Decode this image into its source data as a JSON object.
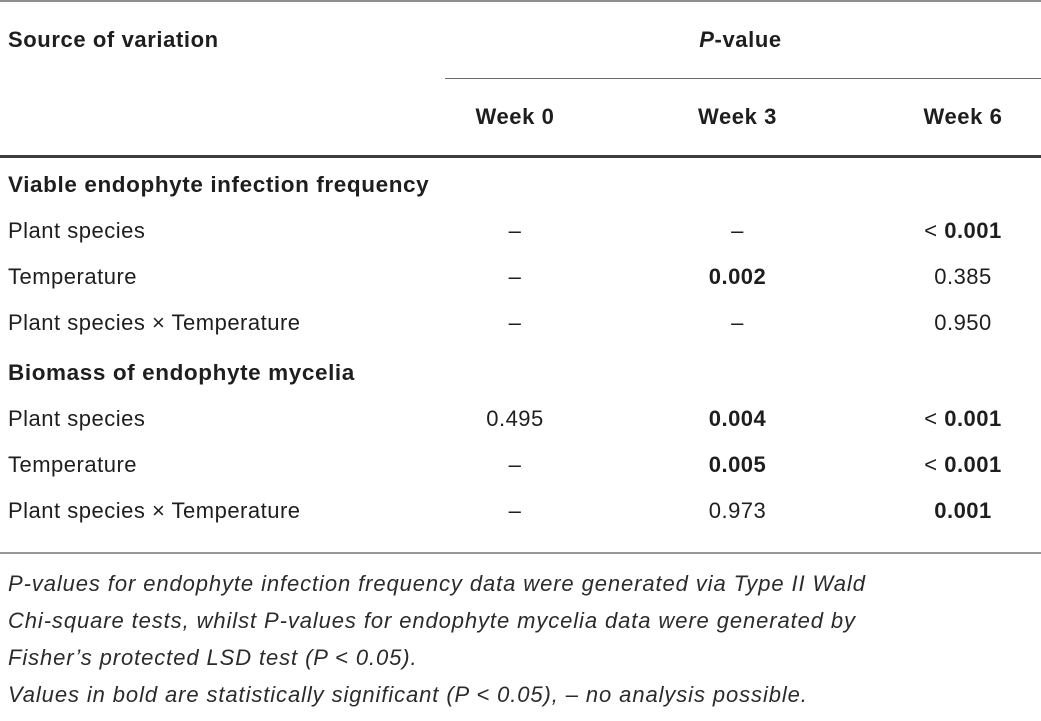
{
  "header": {
    "source_col": "Source of variation",
    "pvalue": {
      "p": "P",
      "rest": "-value"
    },
    "weeks": [
      "Week 0",
      "Week 3",
      "Week 6"
    ]
  },
  "sections": [
    {
      "title": "Viable endophyte infection frequency",
      "rows": [
        {
          "label": "Plant species",
          "cells": [
            {
              "text": "–",
              "bold": false
            },
            {
              "text": "–",
              "bold": false
            },
            {
              "text": "< 0.001",
              "bold": true
            }
          ]
        },
        {
          "label": "Temperature",
          "cells": [
            {
              "text": "–",
              "bold": false
            },
            {
              "text": "0.002",
              "bold": true
            },
            {
              "text": "0.385",
              "bold": false
            }
          ]
        },
        {
          "label": "Plant species × Temperature",
          "cells": [
            {
              "text": "–",
              "bold": false
            },
            {
              "text": "–",
              "bold": false
            },
            {
              "text": "0.950",
              "bold": false
            }
          ]
        }
      ]
    },
    {
      "title": "Biomass of endophyte mycelia",
      "rows": [
        {
          "label": "Plant species",
          "cells": [
            {
              "text": "0.495",
              "bold": false
            },
            {
              "text": "0.004",
              "bold": true
            },
            {
              "text": "< 0.001",
              "bold": true
            }
          ]
        },
        {
          "label": "Temperature",
          "cells": [
            {
              "text": "–",
              "bold": false
            },
            {
              "text": "0.005",
              "bold": true
            },
            {
              "text": "< 0.001",
              "bold": true
            }
          ]
        },
        {
          "label": "Plant species × Temperature",
          "cells": [
            {
              "text": "–",
              "bold": false
            },
            {
              "text": "0.973",
              "bold": false
            },
            {
              "text": "0.001",
              "bold": true
            }
          ]
        }
      ]
    }
  ],
  "footnotes": {
    "lines": [
      "P-values for endophyte infection frequency data were generated via Type II Wald",
      "Chi-square tests, whilst P-values for endophyte mycelia data were generated by",
      "Fisher’s protected LSD test (P < 0.05).",
      "Values in bold are statistically significant (P < 0.05), – no analysis possible."
    ]
  },
  "colors": {
    "text": "#1e1e1e",
    "rule_light": "#8f8f8f",
    "rule_heavy": "#3d3d3d"
  }
}
